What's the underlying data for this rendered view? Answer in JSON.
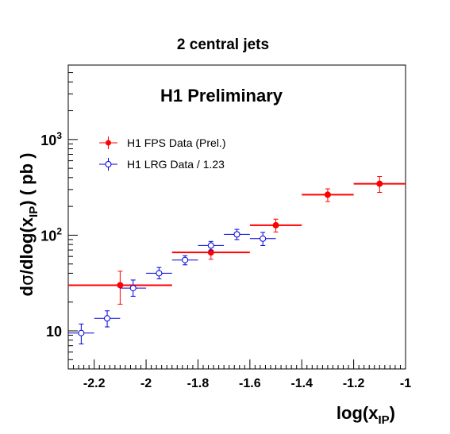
{
  "chart_data": {
    "type": "scatter",
    "title": "2 central jets",
    "annotation": "H1 Preliminary",
    "xlabel_base": "log(x",
    "xlabel_sub": "IP",
    "xlabel_end": ")",
    "ylabel_pre": "d",
    "ylabel_sigma": "σ",
    "ylabel_mid": "/dlog(x",
    "ylabel_sub": "IP",
    "ylabel_post": ") ( pb )",
    "xlim": [
      -2.3,
      -1.0
    ],
    "ylim": [
      4,
      6000
    ],
    "y_scale": "log",
    "grid": false,
    "legend_position": "upper-left",
    "x_ticks": [
      {
        "value": -2.2,
        "label": "-2.2"
      },
      {
        "value": -2.0,
        "label": "-2"
      },
      {
        "value": -1.8,
        "label": "-1.8"
      },
      {
        "value": -1.6,
        "label": "-1.6"
      },
      {
        "value": -1.4,
        "label": "-1.4"
      },
      {
        "value": -1.2,
        "label": "-1.2"
      },
      {
        "value": -1.0,
        "label": "-1"
      }
    ],
    "y_ticks": [
      {
        "value": 10,
        "base": "10",
        "exp": ""
      },
      {
        "value": 100,
        "base": "10",
        "exp": "2"
      },
      {
        "value": 1000,
        "base": "10",
        "exp": "3"
      }
    ],
    "series": [
      {
        "name": "H1 FPS Data (Prel.)",
        "color": "#ff0000",
        "marker": "filled-circle",
        "points": [
          {
            "x": -2.1,
            "xlo": -2.3,
            "xhi": -1.9,
            "y": 30,
            "ylo": 19,
            "yhi": 42
          },
          {
            "x": -1.75,
            "xlo": -1.9,
            "xhi": -1.6,
            "y": 66,
            "ylo": 56,
            "yhi": 79
          },
          {
            "x": -1.5,
            "xlo": -1.6,
            "xhi": -1.4,
            "y": 127,
            "ylo": 108,
            "yhi": 147
          },
          {
            "x": -1.3,
            "xlo": -1.4,
            "xhi": -1.2,
            "y": 265,
            "ylo": 225,
            "yhi": 305
          },
          {
            "x": -1.1,
            "xlo": -1.2,
            "xhi": -1.0,
            "y": 345,
            "ylo": 280,
            "yhi": 410
          }
        ]
      },
      {
        "name": "H1 LRG Data / 1.23",
        "color": "#0000dd",
        "marker": "open-circle",
        "points": [
          {
            "x": -2.25,
            "xlo": -2.3,
            "xhi": -2.2,
            "y": 9.5,
            "ylo": 7.3,
            "yhi": 11.8
          },
          {
            "x": -2.15,
            "xlo": -2.2,
            "xhi": -2.1,
            "y": 13.5,
            "ylo": 11.0,
            "yhi": 16.2
          },
          {
            "x": -2.05,
            "xlo": -2.1,
            "xhi": -2.0,
            "y": 28,
            "ylo": 23,
            "yhi": 34
          },
          {
            "x": -1.95,
            "xlo": -2.0,
            "xhi": -1.9,
            "y": 40,
            "ylo": 35,
            "yhi": 46
          },
          {
            "x": -1.85,
            "xlo": -1.9,
            "xhi": -1.8,
            "y": 55,
            "ylo": 49,
            "yhi": 61
          },
          {
            "x": -1.75,
            "xlo": -1.8,
            "xhi": -1.7,
            "y": 78,
            "ylo": 70,
            "yhi": 86
          },
          {
            "x": -1.65,
            "xlo": -1.7,
            "xhi": -1.6,
            "y": 102,
            "ylo": 90,
            "yhi": 115
          },
          {
            "x": -1.55,
            "xlo": -1.6,
            "xhi": -1.5,
            "y": 92,
            "ylo": 78,
            "yhi": 107
          }
        ]
      }
    ]
  }
}
